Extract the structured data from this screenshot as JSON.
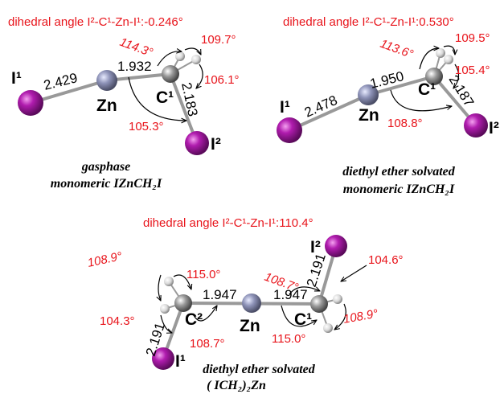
{
  "panels": [
    {
      "dihedral": "dihedral angle  I²-C¹-Zn-I¹:-0.246°",
      "atoms": [
        "I¹",
        "Zn",
        "C¹",
        "I²"
      ],
      "bonds": [
        "2.429",
        "1.932",
        "2.183"
      ],
      "angles": [
        "114.3°",
        "109.7°",
        "106.1°",
        "105.3°"
      ],
      "caption": [
        "gasphase",
        "monomeric IZnCH₂I"
      ]
    },
    {
      "dihedral": "dihedral angle  I²-C¹-Zn-I¹:0.530°",
      "atoms": [
        "I¹",
        "Zn",
        "C¹",
        "I²"
      ],
      "bonds": [
        "2.478",
        "1.950",
        "2.187"
      ],
      "angles": [
        "113.6°",
        "109.5°",
        "105.4°",
        "108.8°"
      ],
      "caption": [
        "diethyl ether solvated",
        "monomeric IZnCH₂I"
      ]
    },
    {
      "dihedral": "dihedral angle  I²-C¹-Zn-I¹:110.4°",
      "atoms": [
        "I²",
        "C²",
        "Zn",
        "C¹",
        "I¹"
      ],
      "bonds": [
        "1.947",
        "1.947",
        "2.191",
        "2.191"
      ],
      "angles": [
        "108.9°",
        "115.0°",
        "104.3°",
        "108.7°",
        "108.7°",
        "104.6°",
        "108.9°",
        "115.0°"
      ],
      "caption": [
        "diethyl ether solvated",
        "( ICH₂)₂Zn"
      ]
    }
  ]
}
